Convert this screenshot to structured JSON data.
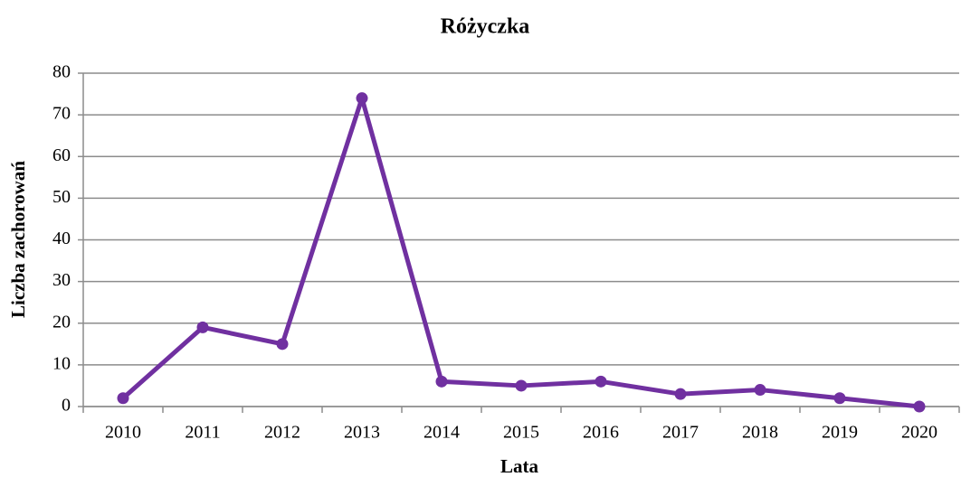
{
  "chart_data": {
    "type": "line",
    "title": "Różyczka",
    "x_label": "Lata",
    "y_label": "Liczba zachorowań",
    "categories": [
      "2010",
      "2011",
      "2012",
      "2013",
      "2014",
      "2015",
      "2016",
      "2017",
      "2018",
      "2019",
      "2020"
    ],
    "values": [
      2,
      19,
      15,
      74,
      6,
      5,
      6,
      3,
      4,
      2,
      0
    ],
    "color": "#7030a0",
    "ylim": [
      0,
      80
    ],
    "yticks": [
      0,
      10,
      20,
      30,
      40,
      50,
      60,
      70,
      80
    ],
    "grid": true
  }
}
